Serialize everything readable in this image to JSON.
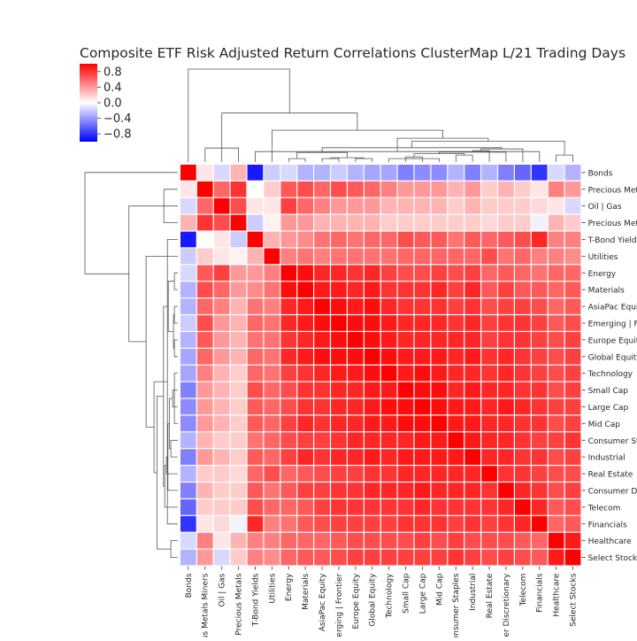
{
  "chart_data": {
    "type": "heatmap",
    "title": "Composite ETF Risk Adjusted Return Correlations ClusterMap L/21 Trading Days",
    "labels": [
      "Bonds",
      "Precious Metals Miners",
      "Oil | Gas",
      "Precious Metals",
      "T-Bond Yields",
      "Utilities",
      "Energy",
      "Materials",
      "AsiaPac Equity",
      "Emerging | Frontier",
      "Europe Equity",
      "Global Equity",
      "Technology",
      "Small Cap",
      "Large Cap",
      "Mid Cap",
      "Consumer Staples",
      "Industrial",
      "Real Estate",
      "Consumer Discretionary",
      "Telecom",
      "Financials",
      "Healthcare",
      "Select Stocks"
    ],
    "colorbar": {
      "cmap": "bwr",
      "vmin": -1,
      "vmax": 1,
      "ticks": [
        0.8,
        0.4,
        0.0,
        -0.4,
        -0.8
      ],
      "tick_labels": [
        "0.8",
        "0.4",
        "0.0",
        "−0.4",
        "−0.8"
      ]
    },
    "matrix": [
      [
        1.0,
        0.1,
        -0.15,
        0.3,
        -0.9,
        -0.2,
        -0.15,
        -0.3,
        -0.3,
        -0.2,
        -0.3,
        -0.35,
        -0.35,
        -0.5,
        -0.45,
        -0.45,
        -0.3,
        -0.5,
        -0.3,
        -0.5,
        -0.6,
        -0.8,
        -0.15,
        -0.3
      ],
      [
        0.1,
        1.0,
        0.6,
        0.8,
        0.0,
        0.2,
        0.65,
        0.7,
        0.6,
        0.7,
        0.65,
        0.6,
        0.5,
        0.4,
        0.4,
        0.4,
        0.3,
        0.4,
        0.2,
        0.3,
        0.2,
        0.1,
        0.5,
        0.4
      ],
      [
        -0.15,
        0.6,
        1.0,
        0.7,
        0.1,
        0.1,
        0.75,
        0.6,
        0.5,
        0.4,
        0.4,
        0.4,
        0.3,
        0.3,
        0.3,
        0.3,
        0.2,
        0.3,
        0.2,
        0.2,
        0.2,
        0.15,
        0.1,
        -0.15
      ],
      [
        0.3,
        0.8,
        0.7,
        1.0,
        -0.2,
        0.05,
        0.4,
        0.4,
        0.3,
        0.3,
        0.3,
        0.3,
        0.2,
        0.2,
        0.2,
        0.2,
        0.2,
        0.2,
        0.15,
        0.2,
        0.2,
        -0.05,
        0.3,
        0.2
      ],
      [
        -0.9,
        0.0,
        0.1,
        -0.2,
        1.0,
        0.3,
        0.4,
        0.45,
        0.55,
        0.6,
        0.55,
        0.6,
        0.6,
        0.7,
        0.65,
        0.65,
        0.55,
        0.65,
        0.6,
        0.65,
        0.7,
        0.85,
        0.5,
        0.5
      ],
      [
        -0.2,
        0.2,
        0.1,
        0.05,
        0.3,
        1.0,
        0.5,
        0.55,
        0.5,
        0.55,
        0.55,
        0.55,
        0.55,
        0.6,
        0.6,
        0.6,
        0.6,
        0.6,
        0.7,
        0.55,
        0.6,
        0.5,
        0.5,
        0.45
      ],
      [
        -0.15,
        0.65,
        0.75,
        0.4,
        0.4,
        0.5,
        1.0,
        0.95,
        0.85,
        0.85,
        0.8,
        0.85,
        0.75,
        0.7,
        0.7,
        0.75,
        0.7,
        0.75,
        0.6,
        0.65,
        0.6,
        0.55,
        0.6,
        0.6
      ],
      [
        -0.3,
        0.7,
        0.6,
        0.4,
        0.45,
        0.55,
        0.95,
        1.0,
        0.9,
        0.9,
        0.85,
        0.9,
        0.8,
        0.8,
        0.8,
        0.85,
        0.75,
        0.85,
        0.65,
        0.75,
        0.65,
        0.65,
        0.6,
        0.65
      ],
      [
        -0.3,
        0.6,
        0.5,
        0.3,
        0.55,
        0.5,
        0.85,
        0.9,
        1.0,
        0.95,
        0.9,
        0.95,
        0.85,
        0.8,
        0.8,
        0.8,
        0.75,
        0.8,
        0.7,
        0.75,
        0.75,
        0.7,
        0.6,
        0.65
      ],
      [
        -0.2,
        0.7,
        0.4,
        0.3,
        0.6,
        0.55,
        0.85,
        0.9,
        0.95,
        1.0,
        0.95,
        0.95,
        0.9,
        0.85,
        0.85,
        0.85,
        0.8,
        0.85,
        0.75,
        0.8,
        0.8,
        0.75,
        0.65,
        0.7
      ],
      [
        -0.3,
        0.65,
        0.4,
        0.3,
        0.55,
        0.55,
        0.8,
        0.85,
        0.9,
        0.95,
        1.0,
        0.95,
        0.9,
        0.85,
        0.85,
        0.85,
        0.85,
        0.85,
        0.75,
        0.8,
        0.8,
        0.75,
        0.7,
        0.75
      ],
      [
        -0.35,
        0.6,
        0.4,
        0.3,
        0.6,
        0.55,
        0.85,
        0.9,
        0.95,
        0.95,
        0.95,
        1.0,
        0.95,
        0.9,
        0.9,
        0.9,
        0.85,
        0.9,
        0.8,
        0.85,
        0.8,
        0.75,
        0.7,
        0.75
      ],
      [
        -0.35,
        0.5,
        0.3,
        0.2,
        0.6,
        0.55,
        0.75,
        0.8,
        0.85,
        0.9,
        0.9,
        0.95,
        1.0,
        0.9,
        0.95,
        0.9,
        0.85,
        0.85,
        0.8,
        0.85,
        0.8,
        0.75,
        0.7,
        0.75
      ],
      [
        -0.5,
        0.4,
        0.3,
        0.2,
        0.7,
        0.6,
        0.7,
        0.8,
        0.8,
        0.85,
        0.85,
        0.9,
        0.9,
        1.0,
        0.95,
        0.95,
        0.85,
        0.9,
        0.85,
        0.85,
        0.8,
        0.8,
        0.7,
        0.75
      ],
      [
        -0.45,
        0.4,
        0.3,
        0.2,
        0.65,
        0.6,
        0.7,
        0.8,
        0.8,
        0.85,
        0.85,
        0.9,
        0.95,
        0.95,
        1.0,
        0.95,
        0.9,
        0.9,
        0.85,
        0.9,
        0.85,
        0.8,
        0.75,
        0.75
      ],
      [
        -0.45,
        0.4,
        0.3,
        0.2,
        0.65,
        0.6,
        0.75,
        0.85,
        0.8,
        0.85,
        0.85,
        0.9,
        0.9,
        0.95,
        0.95,
        1.0,
        0.9,
        0.9,
        0.85,
        0.85,
        0.8,
        0.8,
        0.7,
        0.75
      ],
      [
        -0.3,
        0.3,
        0.2,
        0.2,
        0.55,
        0.6,
        0.7,
        0.75,
        0.75,
        0.8,
        0.85,
        0.85,
        0.85,
        0.85,
        0.9,
        0.9,
        1.0,
        0.9,
        0.85,
        0.85,
        0.8,
        0.75,
        0.75,
        0.8
      ],
      [
        -0.5,
        0.4,
        0.3,
        0.2,
        0.65,
        0.6,
        0.75,
        0.85,
        0.8,
        0.85,
        0.85,
        0.9,
        0.85,
        0.9,
        0.9,
        0.9,
        0.9,
        1.0,
        0.85,
        0.85,
        0.8,
        0.8,
        0.7,
        0.75
      ],
      [
        -0.3,
        0.2,
        0.2,
        0.15,
        0.6,
        0.7,
        0.6,
        0.65,
        0.7,
        0.75,
        0.75,
        0.8,
        0.8,
        0.85,
        0.85,
        0.85,
        0.85,
        0.85,
        1.0,
        0.8,
        0.8,
        0.75,
        0.7,
        0.7
      ],
      [
        -0.5,
        0.3,
        0.2,
        0.2,
        0.65,
        0.55,
        0.65,
        0.75,
        0.75,
        0.8,
        0.8,
        0.85,
        0.85,
        0.85,
        0.9,
        0.85,
        0.85,
        0.85,
        0.8,
        1.0,
        0.85,
        0.8,
        0.7,
        0.75
      ],
      [
        -0.6,
        0.2,
        0.2,
        0.2,
        0.7,
        0.6,
        0.6,
        0.65,
        0.75,
        0.8,
        0.8,
        0.8,
        0.8,
        0.8,
        0.85,
        0.8,
        0.8,
        0.8,
        0.8,
        0.85,
        1.0,
        0.85,
        0.65,
        0.7
      ],
      [
        -0.8,
        0.1,
        0.15,
        -0.05,
        0.85,
        0.5,
        0.55,
        0.65,
        0.7,
        0.75,
        0.75,
        0.75,
        0.75,
        0.8,
        0.8,
        0.8,
        0.75,
        0.8,
        0.75,
        0.8,
        0.85,
        1.0,
        0.6,
        0.65
      ],
      [
        -0.15,
        0.5,
        0.1,
        0.3,
        0.5,
        0.5,
        0.6,
        0.6,
        0.6,
        0.65,
        0.7,
        0.7,
        0.7,
        0.7,
        0.75,
        0.7,
        0.75,
        0.7,
        0.7,
        0.7,
        0.65,
        0.6,
        1.0,
        0.9
      ],
      [
        -0.3,
        0.4,
        -0.15,
        0.2,
        0.5,
        0.45,
        0.6,
        0.65,
        0.65,
        0.7,
        0.75,
        0.75,
        0.75,
        0.75,
        0.75,
        0.75,
        0.8,
        0.75,
        0.7,
        0.75,
        0.7,
        0.65,
        0.9,
        1.0
      ]
    ]
  }
}
